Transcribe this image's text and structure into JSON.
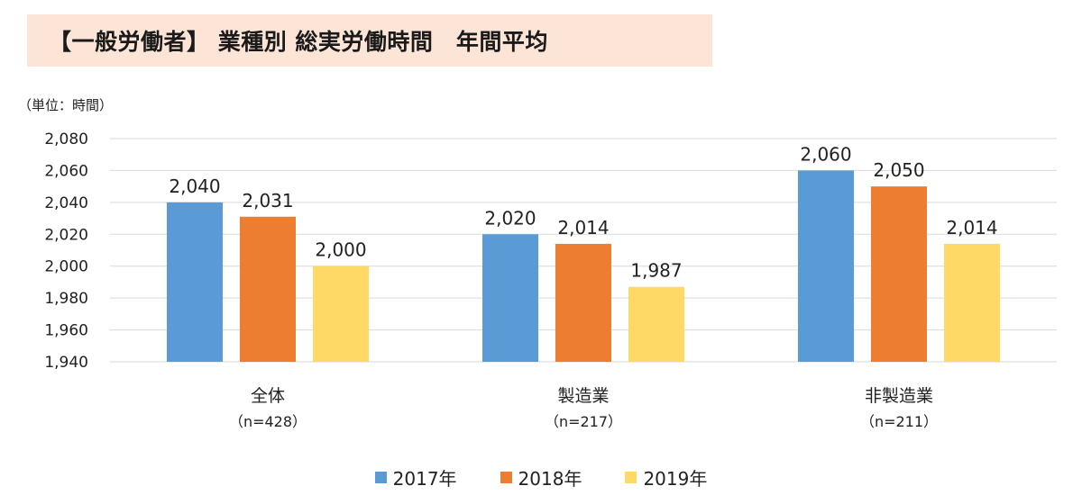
{
  "title": "【一般労働者】 業種別 総実労働時間　年間平均",
  "unit_label": "（単位：時間）",
  "colors": {
    "title_bg": "#fce4d6",
    "series": [
      "#5b9bd5",
      "#ed7d31",
      "#ffd966"
    ],
    "gridline": "#d9d9d9"
  },
  "chart_data": {
    "type": "bar",
    "categories": [
      "全体",
      "製造業",
      "非製造業"
    ],
    "category_sublabels": [
      "（n=428）",
      "（n=217）",
      "（n=211）"
    ],
    "series": [
      {
        "name": "2017年",
        "values": [
          2040,
          2020,
          2060
        ],
        "labels": [
          "2,040",
          "2,020",
          "2,060"
        ]
      },
      {
        "name": "2018年",
        "values": [
          2031,
          2014,
          2050
        ],
        "labels": [
          "2,031",
          "2,014",
          "2,050"
        ]
      },
      {
        "name": "2019年",
        "values": [
          2000,
          1987,
          2014
        ],
        "labels": [
          "2,000",
          "1,987",
          "2,014"
        ]
      }
    ],
    "ylim": [
      1940,
      2080
    ],
    "yticks": [
      1940,
      1960,
      1980,
      2000,
      2020,
      2040,
      2060,
      2080
    ],
    "ytick_labels": [
      "1,940",
      "1,960",
      "1,980",
      "2,000",
      "2,020",
      "2,040",
      "2,060",
      "2,080"
    ],
    "grid": true,
    "legend_position": "bottom"
  }
}
